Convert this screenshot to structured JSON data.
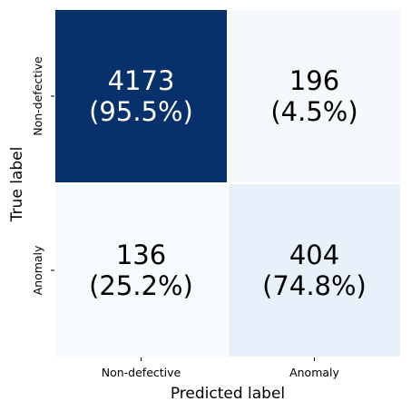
{
  "chart_data": {
    "type": "heatmap",
    "title": "",
    "xlabel": "Predicted label",
    "ylabel": "True label",
    "x_categories": [
      "Non-defective",
      "Anomaly"
    ],
    "y_categories": [
      "Non-defective",
      "Anomaly"
    ],
    "values": [
      [
        4173,
        196
      ],
      [
        136,
        404
      ]
    ],
    "row_percent_labels": [
      [
        "(95.5%)",
        "(4.5%)"
      ],
      [
        "(25.2%)",
        "(74.8%)"
      ]
    ],
    "row_fractions": [
      [
        0.955,
        0.045
      ],
      [
        0.252,
        0.748
      ]
    ],
    "colormap": "Blues",
    "cell_colors": [
      [
        "#08306b",
        "#f5f9fe"
      ],
      [
        "#f6faff",
        "#e8f1fa"
      ]
    ],
    "text_colors": [
      [
        "#ffffff",
        "#000000"
      ],
      [
        "#000000",
        "#000000"
      ]
    ],
    "colorbar": false,
    "grid": false
  }
}
